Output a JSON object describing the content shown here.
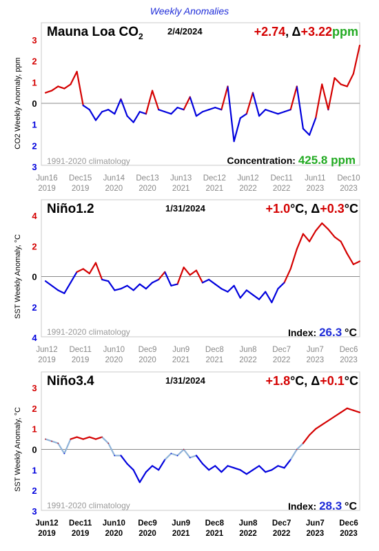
{
  "header": {
    "title": "Weekly Anomalies"
  },
  "colors": {
    "positive": "#d40000",
    "negative": "#0000dd",
    "neutral": "#8fb3d9",
    "green": "#22aa22",
    "blue_text": "#1d2bd8",
    "grey_text": "#999999"
  },
  "chart_data": [
    {
      "type": "line",
      "title": "Mauna Loa CO2",
      "date": "2/4/2024",
      "headline_anomaly": "+2.74",
      "headline_change": "+3.22",
      "headline_unit": "ppm",
      "ylabel": "CO2 Weekly Anomaly, ppm",
      "ylim": [
        -3,
        3
      ],
      "y_ticks": [
        "3",
        "2",
        "1",
        "0",
        "1",
        "2",
        "3"
      ],
      "grid": false,
      "note": "1991-2020 climatology",
      "value_label": "Concentration:",
      "value": "425.8 ppm",
      "x_ticks": [
        {
          "m": "Jun16",
          "y": "2019"
        },
        {
          "m": "Dec15",
          "y": "2019"
        },
        {
          "m": "Jun14",
          "y": "2020"
        },
        {
          "m": "Dec13",
          "y": "2020"
        },
        {
          "m": "Jun13",
          "y": "2021"
        },
        {
          "m": "Dec12",
          "y": "2021"
        },
        {
          "m": "Jun12",
          "y": "2022"
        },
        {
          "m": "Dec11",
          "y": "2022"
        },
        {
          "m": "Jun11",
          "y": "2023"
        },
        {
          "m": "Dec10",
          "y": "2023"
        }
      ],
      "series": [
        {
          "x": [
            0,
            0.02,
            0.04,
            0.06,
            0.08,
            0.1,
            0.12,
            0.14,
            0.16,
            0.18,
            0.2,
            0.22,
            0.24,
            0.26,
            0.28,
            0.3,
            0.32,
            0.34,
            0.36,
            0.38,
            0.4,
            0.42,
            0.44,
            0.46,
            0.48,
            0.5,
            0.52,
            0.54,
            0.56,
            0.58,
            0.6,
            0.62,
            0.64,
            0.66,
            0.68,
            0.7,
            0.72,
            0.74,
            0.76,
            0.78,
            0.8,
            0.82,
            0.84,
            0.86,
            0.88,
            0.9,
            0.92,
            0.94,
            0.96,
            0.98,
            1
          ],
          "y": [
            0.5,
            0.6,
            0.8,
            0.7,
            0.9,
            1.5,
            -0.1,
            -0.3,
            -0.8,
            -0.4,
            -0.3,
            -0.5,
            0.2,
            -0.6,
            -0.9,
            -0.4,
            -0.5,
            0.6,
            -0.3,
            -0.4,
            -0.5,
            -0.2,
            -0.3,
            0.3,
            -0.6,
            -0.4,
            -0.3,
            -0.2,
            -0.3,
            0.8,
            -1.8,
            -0.7,
            -0.5,
            0.5,
            -0.6,
            -0.3,
            -0.4,
            -0.5,
            -0.4,
            -0.3,
            0.8,
            -1.2,
            -1.5,
            -0.7,
            0.9,
            -0.3,
            1.2,
            0.9,
            0.8,
            1.4,
            2.74
          ]
        }
      ]
    },
    {
      "type": "line",
      "title": "Niño1.2",
      "date": "1/31/2024",
      "headline_anomaly": "+1.0",
      "headline_change": "+0.3",
      "headline_unit": "°C",
      "ylabel": "SST Weekly Anomaly, °C",
      "ylim": [
        -4,
        4
      ],
      "y_ticks": [
        "4",
        "2",
        "0",
        "2",
        "4"
      ],
      "grid": false,
      "note": "1991-2020 climatology",
      "value_label": "Index:",
      "value": "26.3",
      "value_unit": "°C",
      "x_ticks": [
        {
          "m": "Jun12",
          "y": "2019"
        },
        {
          "m": "Dec11",
          "y": "2019"
        },
        {
          "m": "Jun10",
          "y": "2020"
        },
        {
          "m": "Dec9",
          "y": "2020"
        },
        {
          "m": "Jun9",
          "y": "2021"
        },
        {
          "m": "Dec8",
          "y": "2021"
        },
        {
          "m": "Jun8",
          "y": "2022"
        },
        {
          "m": "Dec7",
          "y": "2022"
        },
        {
          "m": "Jun7",
          "y": "2023"
        },
        {
          "m": "Dec6",
          "y": "2023"
        }
      ],
      "series": [
        {
          "x": [
            0,
            0.02,
            0.04,
            0.06,
            0.08,
            0.1,
            0.12,
            0.14,
            0.16,
            0.18,
            0.2,
            0.22,
            0.24,
            0.26,
            0.28,
            0.3,
            0.32,
            0.34,
            0.36,
            0.38,
            0.4,
            0.42,
            0.44,
            0.46,
            0.48,
            0.5,
            0.52,
            0.54,
            0.56,
            0.58,
            0.6,
            0.62,
            0.64,
            0.66,
            0.68,
            0.7,
            0.72,
            0.74,
            0.76,
            0.78,
            0.8,
            0.82,
            0.84,
            0.86,
            0.88,
            0.9,
            0.92,
            0.94,
            0.96,
            0.98,
            1
          ],
          "y": [
            -0.3,
            -0.6,
            -0.9,
            -1.1,
            -0.4,
            0.3,
            0.5,
            0.2,
            0.9,
            -0.2,
            -0.3,
            -0.9,
            -0.8,
            -0.6,
            -0.9,
            -0.5,
            -0.8,
            -0.4,
            -0.2,
            0.3,
            -0.6,
            -0.5,
            0.6,
            0.1,
            0.4,
            -0.4,
            -0.2,
            -0.5,
            -0.8,
            -1.0,
            -0.6,
            -1.4,
            -0.9,
            -1.2,
            -1.5,
            -1.0,
            -1.7,
            -0.8,
            -0.4,
            0.5,
            1.8,
            2.8,
            2.3,
            3.0,
            3.5,
            3.1,
            2.6,
            2.3,
            1.5,
            0.8,
            1.0
          ]
        }
      ]
    },
    {
      "type": "line",
      "title": "Niño3.4",
      "date": "1/31/2024",
      "headline_anomaly": "+1.8",
      "headline_change": "+0.1",
      "headline_unit": "°C",
      "ylabel": "SST Weekly Anomaly, °C",
      "ylim": [
        -3,
        3
      ],
      "y_ticks": [
        "3",
        "2",
        "1",
        "0",
        "1",
        "2",
        "3"
      ],
      "grid": false,
      "note": "1991-2020 climatology",
      "value_label": "Index:",
      "value": "28.3",
      "value_unit": "°C",
      "x_ticks": [
        {
          "m": "Jun12",
          "y": "2019"
        },
        {
          "m": "Dec11",
          "y": "2019"
        },
        {
          "m": "Jun10",
          "y": "2020"
        },
        {
          "m": "Dec9",
          "y": "2020"
        },
        {
          "m": "Jun9",
          "y": "2021"
        },
        {
          "m": "Dec8",
          "y": "2021"
        },
        {
          "m": "Jun8",
          "y": "2022"
        },
        {
          "m": "Dec7",
          "y": "2022"
        },
        {
          "m": "Jun7",
          "y": "2023"
        },
        {
          "m": "Dec6",
          "y": "2023"
        }
      ],
      "series": [
        {
          "x": [
            0,
            0.02,
            0.04,
            0.06,
            0.08,
            0.1,
            0.12,
            0.14,
            0.16,
            0.18,
            0.2,
            0.22,
            0.24,
            0.26,
            0.28,
            0.3,
            0.32,
            0.34,
            0.36,
            0.38,
            0.4,
            0.42,
            0.44,
            0.46,
            0.48,
            0.5,
            0.52,
            0.54,
            0.56,
            0.58,
            0.6,
            0.62,
            0.64,
            0.66,
            0.68,
            0.7,
            0.72,
            0.74,
            0.76,
            0.78,
            0.8,
            0.82,
            0.84,
            0.86,
            0.88,
            0.9,
            0.92,
            0.94,
            0.96,
            0.98,
            1
          ],
          "y": [
            0.5,
            0.4,
            0.3,
            -0.2,
            0.5,
            0.6,
            0.5,
            0.6,
            0.5,
            0.6,
            0.3,
            -0.3,
            -0.3,
            -0.7,
            -1.0,
            -1.6,
            -1.1,
            -0.8,
            -1.0,
            -0.5,
            -0.2,
            -0.3,
            0.0,
            -0.4,
            -0.3,
            -0.7,
            -1.0,
            -0.8,
            -1.1,
            -0.8,
            -0.9,
            -1.0,
            -1.2,
            -1.0,
            -0.8,
            -1.1,
            -1.0,
            -0.8,
            -0.9,
            -0.5,
            0.0,
            0.3,
            0.7,
            1.0,
            1.2,
            1.4,
            1.6,
            1.8,
            2.0,
            1.9,
            1.8
          ]
        }
      ]
    }
  ]
}
